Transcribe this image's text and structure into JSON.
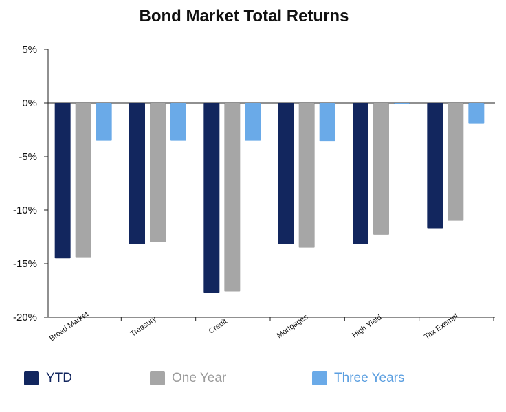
{
  "chart_data": {
    "type": "bar",
    "title": "Bond Market Total Returns",
    "categories": [
      "Broad Market",
      "Treasury",
      "Credit",
      "Mortgages",
      "High Yield",
      "Tax Exempt"
    ],
    "series": [
      {
        "name": "YTD",
        "color": "#12265e",
        "values": [
          -14.5,
          -13.2,
          -17.7,
          -13.2,
          -13.2,
          -11.7
        ]
      },
      {
        "name": "One Year",
        "color": "#a6a6a6",
        "values": [
          -14.4,
          -13.0,
          -17.6,
          -13.5,
          -12.3,
          -11.0
        ]
      },
      {
        "name": "Three Years",
        "color": "#6aaae8",
        "values": [
          -3.5,
          -3.5,
          -3.5,
          -3.6,
          -0.1,
          -1.9
        ]
      }
    ],
    "ylim": [
      -20,
      5
    ],
    "yticks": [
      5,
      0,
      -5,
      -10,
      -15,
      -20
    ],
    "ytick_labels": [
      "5%",
      "0%",
      "-5%",
      "-10%",
      "-15%",
      "-20%"
    ],
    "grid": false,
    "legend_position": "bottom"
  }
}
